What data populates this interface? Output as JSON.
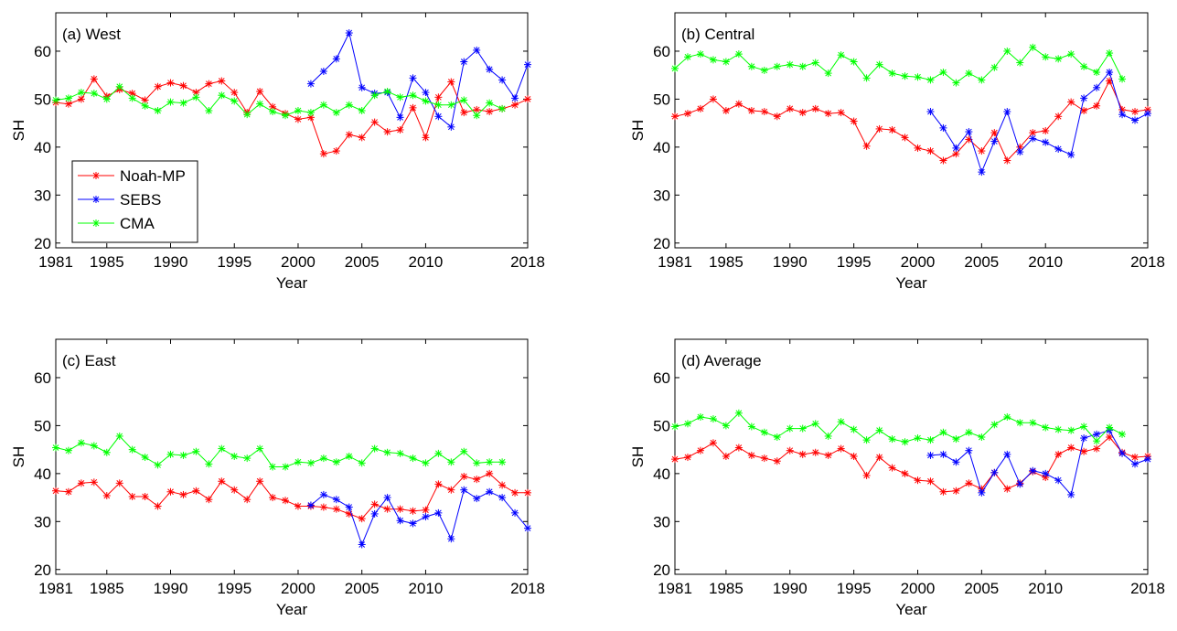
{
  "chart_data": [
    {
      "type": "line",
      "title": "(a) West",
      "xlabel": "Year",
      "ylabel": "SH",
      "xlim": [
        1981,
        2018
      ],
      "ylim": [
        19,
        68
      ],
      "xticks": [
        "1981",
        "1985",
        "1990",
        "1995",
        "2000",
        "2005",
        "2010",
        "2018"
      ],
      "yticks": [
        "20",
        "30",
        "40",
        "50",
        "60"
      ],
      "legend": "bottom-left",
      "series": [
        {
          "name": "Noah-MP",
          "color": "#ff0000",
          "x": [
            1981,
            1982,
            1983,
            1984,
            1985,
            1986,
            1987,
            1988,
            1989,
            1990,
            1991,
            1992,
            1993,
            1994,
            1995,
            1996,
            1997,
            1998,
            1999,
            2000,
            2001,
            2002,
            2003,
            2004,
            2005,
            2006,
            2007,
            2008,
            2009,
            2010,
            2011,
            2012,
            2013,
            2014,
            2015,
            2016,
            2017,
            2018
          ],
          "y": [
            49.3,
            49.0,
            50.0,
            54.2,
            50.6,
            52.0,
            51.2,
            49.8,
            52.6,
            53.4,
            52.8,
            51.4,
            53.2,
            53.8,
            51.4,
            47.2,
            51.6,
            48.4,
            47.0,
            45.8,
            46.2,
            38.6,
            39.2,
            42.6,
            42.0,
            45.2,
            43.2,
            43.6,
            48.2,
            42.0,
            50.4,
            53.6,
            47.2,
            47.8,
            47.4,
            48.0,
            48.8,
            50.0
          ]
        },
        {
          "name": "SEBS",
          "color": "#0000ff",
          "x": [
            2001,
            2002,
            2003,
            2004,
            2005,
            2006,
            2007,
            2008,
            2009,
            2010,
            2011,
            2012,
            2013,
            2014,
            2015,
            2016,
            2017,
            2018
          ],
          "y": [
            53.2,
            55.8,
            58.4,
            63.8,
            52.4,
            51.2,
            51.4,
            46.2,
            54.4,
            51.4,
            46.4,
            44.2,
            57.8,
            60.2,
            56.2,
            54.0,
            50.2,
            57.2
          ]
        },
        {
          "name": "CMA",
          "color": "#00ff00",
          "x": [
            1981,
            1982,
            1983,
            1984,
            1985,
            1986,
            1987,
            1988,
            1989,
            1990,
            1991,
            1992,
            1993,
            1994,
            1995,
            1996,
            1997,
            1998,
            1999,
            2000,
            2001,
            2002,
            2003,
            2004,
            2005,
            2006,
            2007,
            2008,
            2009,
            2010,
            2011,
            2012,
            2013,
            2014,
            2015,
            2016
          ],
          "y": [
            49.8,
            50.2,
            51.4,
            51.2,
            50.0,
            52.6,
            50.2,
            48.6,
            47.6,
            49.4,
            49.2,
            50.4,
            47.6,
            50.8,
            49.6,
            46.8,
            49.0,
            47.4,
            46.6,
            47.6,
            47.2,
            48.8,
            47.2,
            48.8,
            47.6,
            50.8,
            51.6,
            50.4,
            50.8,
            49.6,
            48.8,
            48.8,
            49.8,
            46.6,
            49.2,
            48.0
          ]
        }
      ]
    },
    {
      "type": "line",
      "title": "(b) Central",
      "xlabel": "Year",
      "ylabel": "SH",
      "xlim": [
        1981,
        2018
      ],
      "ylim": [
        19,
        68
      ],
      "xticks": [
        "1981",
        "1985",
        "1990",
        "1995",
        "2000",
        "2005",
        "2010",
        "2018"
      ],
      "yticks": [
        "20",
        "30",
        "40",
        "50",
        "60"
      ],
      "series": [
        {
          "name": "Noah-MP",
          "color": "#ff0000",
          "x": [
            1981,
            1982,
            1983,
            1984,
            1985,
            1986,
            1987,
            1988,
            1989,
            1990,
            1991,
            1992,
            1993,
            1994,
            1995,
            1996,
            1997,
            1998,
            1999,
            2000,
            2001,
            2002,
            2003,
            2004,
            2005,
            2006,
            2007,
            2008,
            2009,
            2010,
            2011,
            2012,
            2013,
            2014,
            2015,
            2016,
            2017,
            2018
          ],
          "y": [
            46.4,
            47.0,
            48.0,
            50.0,
            47.6,
            49.0,
            47.6,
            47.4,
            46.4,
            48.0,
            47.2,
            48.0,
            47.0,
            47.2,
            45.4,
            40.2,
            43.8,
            43.6,
            42.0,
            39.8,
            39.2,
            37.2,
            38.6,
            41.6,
            39.2,
            43.0,
            37.2,
            40.0,
            43.0,
            43.4,
            46.4,
            49.4,
            47.6,
            48.6,
            53.8,
            47.8,
            47.4,
            47.8
          ]
        },
        {
          "name": "SEBS",
          "color": "#0000ff",
          "x": [
            2001,
            2002,
            2003,
            2004,
            2005,
            2006,
            2007,
            2008,
            2009,
            2010,
            2011,
            2012,
            2013,
            2014,
            2015,
            2016,
            2017,
            2018
          ],
          "y": [
            47.4,
            44.0,
            39.8,
            43.2,
            34.8,
            41.2,
            47.4,
            39.0,
            41.8,
            41.0,
            39.6,
            38.4,
            50.2,
            52.4,
            55.6,
            46.8,
            45.6,
            47.0
          ]
        },
        {
          "name": "CMA",
          "color": "#00ff00",
          "x": [
            1981,
            1982,
            1983,
            1984,
            1985,
            1986,
            1987,
            1988,
            1989,
            1990,
            1991,
            1992,
            1993,
            1994,
            1995,
            1996,
            1997,
            1998,
            1999,
            2000,
            2001,
            2002,
            2003,
            2004,
            2005,
            2006,
            2007,
            2008,
            2009,
            2010,
            2011,
            2012,
            2013,
            2014,
            2015,
            2016
          ],
          "y": [
            56.4,
            58.8,
            59.4,
            58.2,
            57.8,
            59.4,
            56.8,
            56.0,
            56.8,
            57.2,
            56.8,
            57.6,
            55.4,
            59.2,
            57.8,
            54.4,
            57.2,
            55.4,
            54.8,
            54.6,
            54.0,
            55.6,
            53.4,
            55.4,
            54.0,
            56.6,
            60.0,
            57.6,
            60.8,
            58.8,
            58.4,
            59.4,
            56.8,
            55.6,
            59.6,
            54.2
          ]
        }
      ]
    },
    {
      "type": "line",
      "title": "(c) East",
      "xlabel": "Year",
      "ylabel": "SH",
      "xlim": [
        1981,
        2018
      ],
      "ylim": [
        19,
        68
      ],
      "xticks": [
        "1981",
        "1985",
        "1990",
        "1995",
        "2000",
        "2005",
        "2010",
        "2018"
      ],
      "yticks": [
        "20",
        "30",
        "40",
        "50",
        "60"
      ],
      "series": [
        {
          "name": "Noah-MP",
          "color": "#ff0000",
          "x": [
            1981,
            1982,
            1983,
            1984,
            1985,
            1986,
            1987,
            1988,
            1989,
            1990,
            1991,
            1992,
            1993,
            1994,
            1995,
            1996,
            1997,
            1998,
            1999,
            2000,
            2001,
            2002,
            2003,
            2004,
            2005,
            2006,
            2007,
            2008,
            2009,
            2010,
            2011,
            2012,
            2013,
            2014,
            2015,
            2016,
            2017,
            2018
          ],
          "y": [
            36.4,
            36.2,
            38.0,
            38.2,
            35.4,
            38.0,
            35.2,
            35.2,
            33.2,
            36.2,
            35.6,
            36.4,
            34.6,
            38.4,
            36.6,
            34.6,
            38.4,
            35.0,
            34.4,
            33.2,
            33.2,
            33.0,
            32.6,
            31.6,
            30.6,
            33.6,
            32.6,
            32.6,
            32.2,
            32.4,
            37.8,
            36.6,
            39.4,
            38.8,
            40.0,
            37.6,
            36.0,
            36.0
          ]
        },
        {
          "name": "SEBS",
          "color": "#0000ff",
          "x": [
            2001,
            2002,
            2003,
            2004,
            2005,
            2006,
            2007,
            2008,
            2009,
            2010,
            2011,
            2012,
            2013,
            2014,
            2015,
            2016,
            2017,
            2018
          ],
          "y": [
            33.4,
            35.6,
            34.6,
            33.0,
            25.2,
            31.6,
            35.0,
            30.2,
            29.6,
            31.0,
            31.8,
            26.4,
            36.6,
            34.8,
            36.2,
            35.0,
            31.8,
            28.6
          ]
        },
        {
          "name": "CMA",
          "color": "#00ff00",
          "x": [
            1981,
            1982,
            1983,
            1984,
            1985,
            1986,
            1987,
            1988,
            1989,
            1990,
            1991,
            1992,
            1993,
            1994,
            1995,
            1996,
            1997,
            1998,
            1999,
            2000,
            2001,
            2002,
            2003,
            2004,
            2005,
            2006,
            2007,
            2008,
            2009,
            2010,
            2011,
            2012,
            2013,
            2014,
            2015,
            2016
          ],
          "y": [
            45.4,
            44.8,
            46.4,
            45.8,
            44.4,
            47.8,
            45.0,
            43.4,
            41.8,
            44.0,
            43.8,
            44.6,
            42.0,
            45.2,
            43.6,
            43.2,
            45.2,
            41.4,
            41.4,
            42.4,
            42.2,
            43.2,
            42.4,
            43.6,
            42.2,
            45.2,
            44.4,
            44.2,
            43.2,
            42.2,
            44.2,
            42.4,
            44.6,
            42.2,
            42.4,
            42.4
          ]
        }
      ]
    },
    {
      "type": "line",
      "title": "(d) Average",
      "xlabel": "Year",
      "ylabel": "SH",
      "xlim": [
        1981,
        2018
      ],
      "ylim": [
        19,
        68
      ],
      "xticks": [
        "1981",
        "1985",
        "1990",
        "1995",
        "2000",
        "2005",
        "2010",
        "2018"
      ],
      "yticks": [
        "20",
        "30",
        "40",
        "50",
        "60"
      ],
      "series": [
        {
          "name": "Noah-MP",
          "color": "#ff0000",
          "x": [
            1981,
            1982,
            1983,
            1984,
            1985,
            1986,
            1987,
            1988,
            1989,
            1990,
            1991,
            1992,
            1993,
            1994,
            1995,
            1996,
            1997,
            1998,
            1999,
            2000,
            2001,
            2002,
            2003,
            2004,
            2005,
            2006,
            2007,
            2008,
            2009,
            2010,
            2011,
            2012,
            2013,
            2014,
            2015,
            2016,
            2017,
            2018
          ],
          "y": [
            43.0,
            43.4,
            44.8,
            46.4,
            43.6,
            45.4,
            43.8,
            43.2,
            42.6,
            44.8,
            44.0,
            44.4,
            43.8,
            45.2,
            43.6,
            39.6,
            43.4,
            41.2,
            40.0,
            38.6,
            38.4,
            36.2,
            36.4,
            38.0,
            36.8,
            40.2,
            36.8,
            38.0,
            40.4,
            39.2,
            44.0,
            45.4,
            44.6,
            45.2,
            47.6,
            44.4,
            43.4,
            43.6
          ]
        },
        {
          "name": "SEBS",
          "color": "#0000ff",
          "x": [
            2001,
            2002,
            2003,
            2004,
            2005,
            2006,
            2007,
            2008,
            2009,
            2010,
            2011,
            2012,
            2013,
            2014,
            2015,
            2016,
            2017,
            2018
          ],
          "y": [
            43.8,
            44.0,
            42.4,
            44.8,
            36.0,
            40.2,
            44.0,
            37.8,
            40.6,
            40.0,
            38.6,
            35.6,
            47.4,
            48.2,
            49.0,
            44.2,
            42.0,
            43.0
          ]
        },
        {
          "name": "CMA",
          "color": "#00ff00",
          "x": [
            1981,
            1982,
            1983,
            1984,
            1985,
            1986,
            1987,
            1988,
            1989,
            1990,
            1991,
            1992,
            1993,
            1994,
            1995,
            1996,
            1997,
            1998,
            1999,
            2000,
            2001,
            2002,
            2003,
            2004,
            2005,
            2006,
            2007,
            2008,
            2009,
            2010,
            2011,
            2012,
            2013,
            2014,
            2015,
            2016
          ],
          "y": [
            49.8,
            50.4,
            51.8,
            51.4,
            50.0,
            52.6,
            49.8,
            48.6,
            47.6,
            49.4,
            49.4,
            50.4,
            47.8,
            50.8,
            49.2,
            47.0,
            49.0,
            47.2,
            46.6,
            47.4,
            47.0,
            48.6,
            47.2,
            48.6,
            47.6,
            50.2,
            51.8,
            50.6,
            50.6,
            49.6,
            49.2,
            49.0,
            49.8,
            46.8,
            49.6,
            48.2
          ]
        }
      ]
    }
  ]
}
